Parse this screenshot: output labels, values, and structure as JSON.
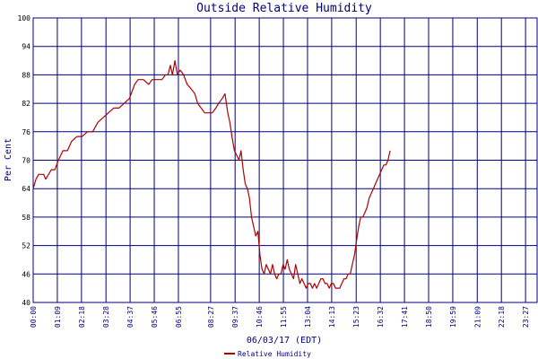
{
  "chart_data": {
    "type": "line",
    "title": "Outside Relative Humidity",
    "xlabel": "06/03/17 (EDT)",
    "ylabel": "Per Cent",
    "ylim": [
      40,
      100
    ],
    "xlim": [
      0,
      1440
    ],
    "grid": true,
    "legend": "bottom-center",
    "y_ticks": [
      {
        "value": 40,
        "label": "40"
      },
      {
        "value": 46,
        "label": "46"
      },
      {
        "value": 52,
        "label": "52"
      },
      {
        "value": 58,
        "label": "58"
      },
      {
        "value": 64,
        "label": "64"
      },
      {
        "value": 70,
        "label": "70"
      },
      {
        "value": 76,
        "label": "76"
      },
      {
        "value": 82,
        "label": "82"
      },
      {
        "value": 88,
        "label": "88"
      },
      {
        "value": 94,
        "label": "94"
      },
      {
        "value": 100,
        "label": "100"
      }
    ],
    "x_ticks": [
      {
        "value": 0,
        "label": "00:00"
      },
      {
        "value": 69,
        "label": "01:09"
      },
      {
        "value": 138,
        "label": "02:18"
      },
      {
        "value": 208,
        "label": "03:28"
      },
      {
        "value": 277,
        "label": "04:37"
      },
      {
        "value": 346,
        "label": "05:46"
      },
      {
        "value": 415,
        "label": "06:55"
      },
      {
        "value": 507,
        "label": "08:27"
      },
      {
        "value": 577,
        "label": "09:37"
      },
      {
        "value": 646,
        "label": "10:46"
      },
      {
        "value": 715,
        "label": "11:55"
      },
      {
        "value": 784,
        "label": "13:04"
      },
      {
        "value": 853,
        "label": "14:13"
      },
      {
        "value": 923,
        "label": "15:23"
      },
      {
        "value": 992,
        "label": "16:32"
      },
      {
        "value": 1061,
        "label": "17:41"
      },
      {
        "value": 1130,
        "label": "18:50"
      },
      {
        "value": 1199,
        "label": "19:59"
      },
      {
        "value": 1269,
        "label": "21:09"
      },
      {
        "value": 1338,
        "label": "22:18"
      },
      {
        "value": 1407,
        "label": "23:27"
      }
    ],
    "series": [
      {
        "name": "Relative Humidity",
        "color": "#b00000",
        "points": [
          [
            0,
            64
          ],
          [
            8,
            66
          ],
          [
            16,
            67
          ],
          [
            30,
            67
          ],
          [
            36,
            66
          ],
          [
            52,
            68
          ],
          [
            62,
            68
          ],
          [
            72,
            70
          ],
          [
            85,
            72
          ],
          [
            98,
            72
          ],
          [
            110,
            74
          ],
          [
            125,
            75
          ],
          [
            140,
            75
          ],
          [
            155,
            76
          ],
          [
            170,
            76
          ],
          [
            185,
            78
          ],
          [
            200,
            79
          ],
          [
            215,
            80
          ],
          [
            230,
            81
          ],
          [
            245,
            81
          ],
          [
            260,
            82
          ],
          [
            275,
            83
          ],
          [
            290,
            86
          ],
          [
            300,
            87
          ],
          [
            315,
            87
          ],
          [
            330,
            86
          ],
          [
            340,
            87
          ],
          [
            355,
            87
          ],
          [
            368,
            87
          ],
          [
            378,
            88
          ],
          [
            385,
            88
          ],
          [
            392,
            90
          ],
          [
            398,
            88
          ],
          [
            405,
            91
          ],
          [
            412,
            88
          ],
          [
            420,
            89
          ],
          [
            430,
            88
          ],
          [
            440,
            86
          ],
          [
            452,
            85
          ],
          [
            462,
            84
          ],
          [
            470,
            82
          ],
          [
            480,
            81
          ],
          [
            490,
            80
          ],
          [
            500,
            80
          ],
          [
            512,
            80
          ],
          [
            522,
            81
          ],
          [
            530,
            82
          ],
          [
            540,
            83
          ],
          [
            548,
            84
          ],
          [
            556,
            80
          ],
          [
            562,
            78
          ],
          [
            568,
            75
          ],
          [
            575,
            72
          ],
          [
            582,
            71
          ],
          [
            588,
            70
          ],
          [
            594,
            72
          ],
          [
            600,
            68
          ],
          [
            606,
            65
          ],
          [
            612,
            64
          ],
          [
            618,
            62
          ],
          [
            624,
            58
          ],
          [
            630,
            56
          ],
          [
            636,
            54
          ],
          [
            642,
            55
          ],
          [
            648,
            50
          ],
          [
            654,
            47
          ],
          [
            660,
            46
          ],
          [
            666,
            48
          ],
          [
            672,
            47
          ],
          [
            678,
            46
          ],
          [
            684,
            48
          ],
          [
            690,
            46
          ],
          [
            696,
            45
          ],
          [
            702,
            46
          ],
          [
            708,
            46
          ],
          [
            714,
            48
          ],
          [
            720,
            47
          ],
          [
            726,
            49
          ],
          [
            732,
            47
          ],
          [
            738,
            46
          ],
          [
            744,
            45
          ],
          [
            750,
            48
          ],
          [
            756,
            46
          ],
          [
            762,
            44
          ],
          [
            768,
            45
          ],
          [
            774,
            44
          ],
          [
            780,
            43
          ],
          [
            786,
            44
          ],
          [
            792,
            44
          ],
          [
            798,
            43
          ],
          [
            804,
            44
          ],
          [
            810,
            43
          ],
          [
            816,
            44
          ],
          [
            822,
            45
          ],
          [
            828,
            45
          ],
          [
            834,
            44
          ],
          [
            840,
            44
          ],
          [
            846,
            43
          ],
          [
            852,
            44
          ],
          [
            858,
            44
          ],
          [
            864,
            43
          ],
          [
            870,
            43
          ],
          [
            876,
            43
          ],
          [
            882,
            44
          ],
          [
            888,
            45
          ],
          [
            894,
            45
          ],
          [
            900,
            46
          ],
          [
            906,
            46
          ],
          [
            912,
            48
          ],
          [
            918,
            50
          ],
          [
            924,
            53
          ],
          [
            930,
            56
          ],
          [
            936,
            58
          ],
          [
            942,
            58
          ],
          [
            948,
            59
          ],
          [
            954,
            60
          ],
          [
            960,
            62
          ],
          [
            966,
            63
          ],
          [
            972,
            64
          ],
          [
            978,
            65
          ],
          [
            984,
            66
          ],
          [
            990,
            67
          ],
          [
            996,
            68
          ],
          [
            1002,
            69
          ],
          [
            1008,
            69
          ],
          [
            1014,
            70
          ],
          [
            1020,
            72
          ]
        ]
      }
    ]
  }
}
